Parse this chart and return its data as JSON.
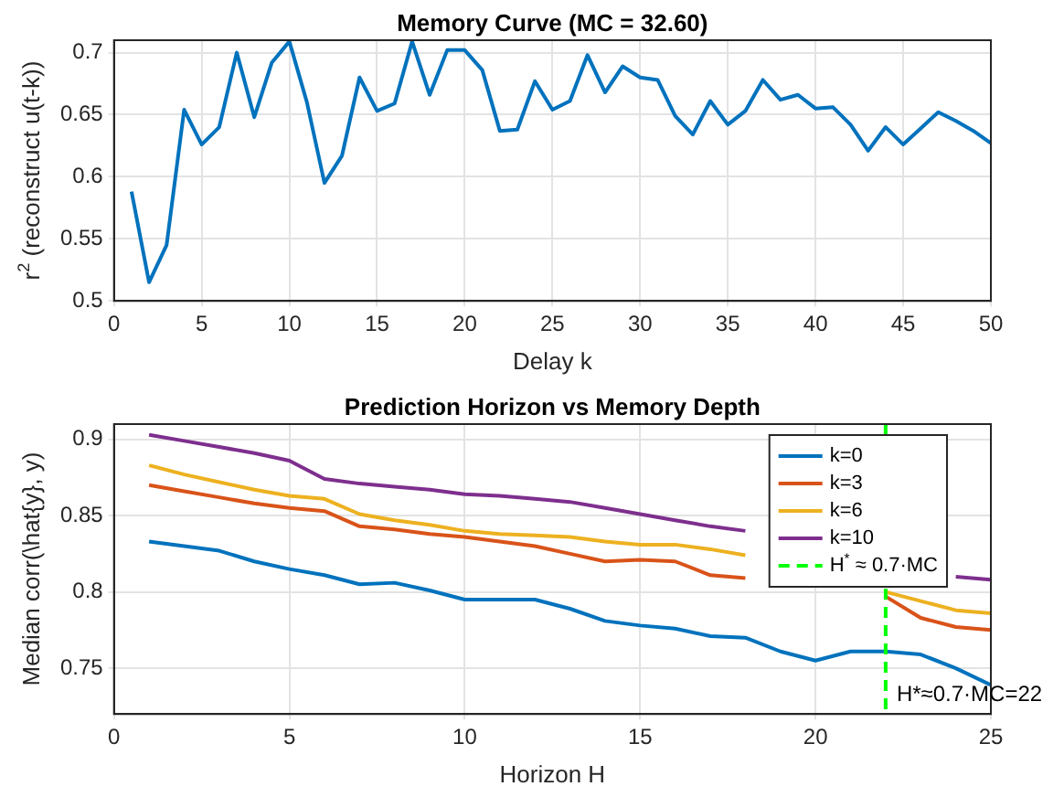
{
  "chart_data": [
    {
      "type": "line",
      "title": "Memory Curve (MC = 32.60)",
      "xlabel": "Delay k",
      "ylabel": "r$^{2}$ (reconstruct u(t-k))",
      "x": [
        1,
        2,
        3,
        4,
        5,
        6,
        7,
        8,
        9,
        10,
        11,
        12,
        13,
        14,
        15,
        16,
        17,
        18,
        19,
        20,
        21,
        22,
        23,
        24,
        25,
        26,
        27,
        28,
        29,
        30,
        31,
        32,
        33,
        34,
        35,
        36,
        37,
        38,
        39,
        40,
        41,
        42,
        43,
        44,
        45,
        46,
        47,
        48,
        49,
        50
      ],
      "series": [
        {
          "color": "#0072bd",
          "values": [
            0.588,
            0.515,
            0.545,
            0.654,
            0.626,
            0.64,
            0.7,
            0.648,
            0.692,
            0.709,
            0.66,
            0.595,
            0.617,
            0.68,
            0.653,
            0.659,
            0.709,
            0.666,
            0.702,
            0.702,
            0.686,
            0.637,
            0.638,
            0.677,
            0.654,
            0.661,
            0.698,
            0.668,
            0.689,
            0.68,
            0.678,
            0.649,
            0.634,
            0.661,
            0.642,
            0.653,
            0.678,
            0.662,
            0.666,
            0.655,
            0.656,
            0.642,
            0.621,
            0.64,
            0.626,
            0.639,
            0.652,
            0.645,
            0.637,
            0.627
          ]
        }
      ],
      "xlim": [
        0,
        50
      ],
      "xticks": [
        0,
        5,
        10,
        15,
        20,
        25,
        30,
        35,
        40,
        45,
        50
      ],
      "ylim": [
        0.5,
        0.71
      ],
      "yticks": [
        0.5,
        0.55,
        0.6,
        0.65,
        0.7
      ],
      "grid": true,
      "legend": false,
      "marker": "none",
      "line_style": "solid"
    },
    {
      "type": "line",
      "title": "Prediction Horizon vs Memory Depth",
      "xlabel": "Horizon H",
      "ylabel": "Median corr(\\hat{y}, y)",
      "x": [
        1,
        2,
        3,
        4,
        5,
        6,
        7,
        8,
        9,
        10,
        11,
        12,
        13,
        14,
        15,
        16,
        17,
        18,
        19,
        20,
        21,
        22,
        23,
        24,
        25
      ],
      "series": [
        {
          "name": "k=0",
          "color": "#0072bd",
          "values": [
            0.833,
            0.83,
            0.827,
            0.82,
            0.815,
            0.811,
            0.805,
            0.806,
            0.801,
            0.795,
            0.795,
            0.795,
            0.789,
            0.781,
            0.778,
            0.776,
            0.771,
            0.77,
            0.761,
            0.755,
            0.761,
            0.761,
            0.759,
            0.75,
            0.739
          ]
        },
        {
          "name": "k=3",
          "color": "#d95319",
          "values": [
            0.87,
            0.866,
            0.862,
            0.858,
            0.855,
            0.853,
            0.843,
            0.841,
            0.838,
            0.836,
            0.833,
            0.83,
            0.825,
            0.82,
            0.821,
            0.82,
            0.811,
            0.809,
            null,
            null,
            null,
            0.797,
            0.783,
            0.777,
            0.775
          ]
        },
        {
          "name": "k=6",
          "color": "#edb120",
          "values": [
            0.883,
            0.877,
            0.872,
            0.867,
            0.863,
            0.861,
            0.851,
            0.847,
            0.844,
            0.84,
            0.838,
            0.837,
            0.836,
            0.833,
            0.831,
            0.831,
            0.828,
            0.824,
            null,
            null,
            null,
            0.8,
            0.794,
            0.788,
            0.786
          ]
        },
        {
          "name": "k=10",
          "color": "#7e2f8e",
          "values": [
            0.903,
            0.899,
            0.895,
            0.891,
            0.886,
            0.874,
            0.871,
            0.869,
            0.867,
            0.864,
            0.863,
            0.861,
            0.859,
            0.855,
            0.851,
            0.847,
            0.843,
            0.84,
            null,
            null,
            null,
            null,
            null,
            0.81,
            0.808
          ]
        }
      ],
      "ref_lines": [
        {
          "axis": "x",
          "value": 22,
          "label": "H$^{*}$ ≈ 0.7·MC",
          "color": "#00ff00",
          "line_style": "dashed"
        }
      ],
      "annotations": [
        {
          "text": "H*≈0.7·MC=22",
          "x": 22,
          "y": 0.729
        }
      ],
      "xlim": [
        0,
        25
      ],
      "xticks": [
        0,
        5,
        10,
        15,
        20,
        25
      ],
      "ylim": [
        0.72,
        0.91
      ],
      "yticks": [
        0.75,
        0.8,
        0.85,
        0.9
      ],
      "grid": true,
      "legend": "top right",
      "marker": "none",
      "line_style": "solid"
    }
  ]
}
